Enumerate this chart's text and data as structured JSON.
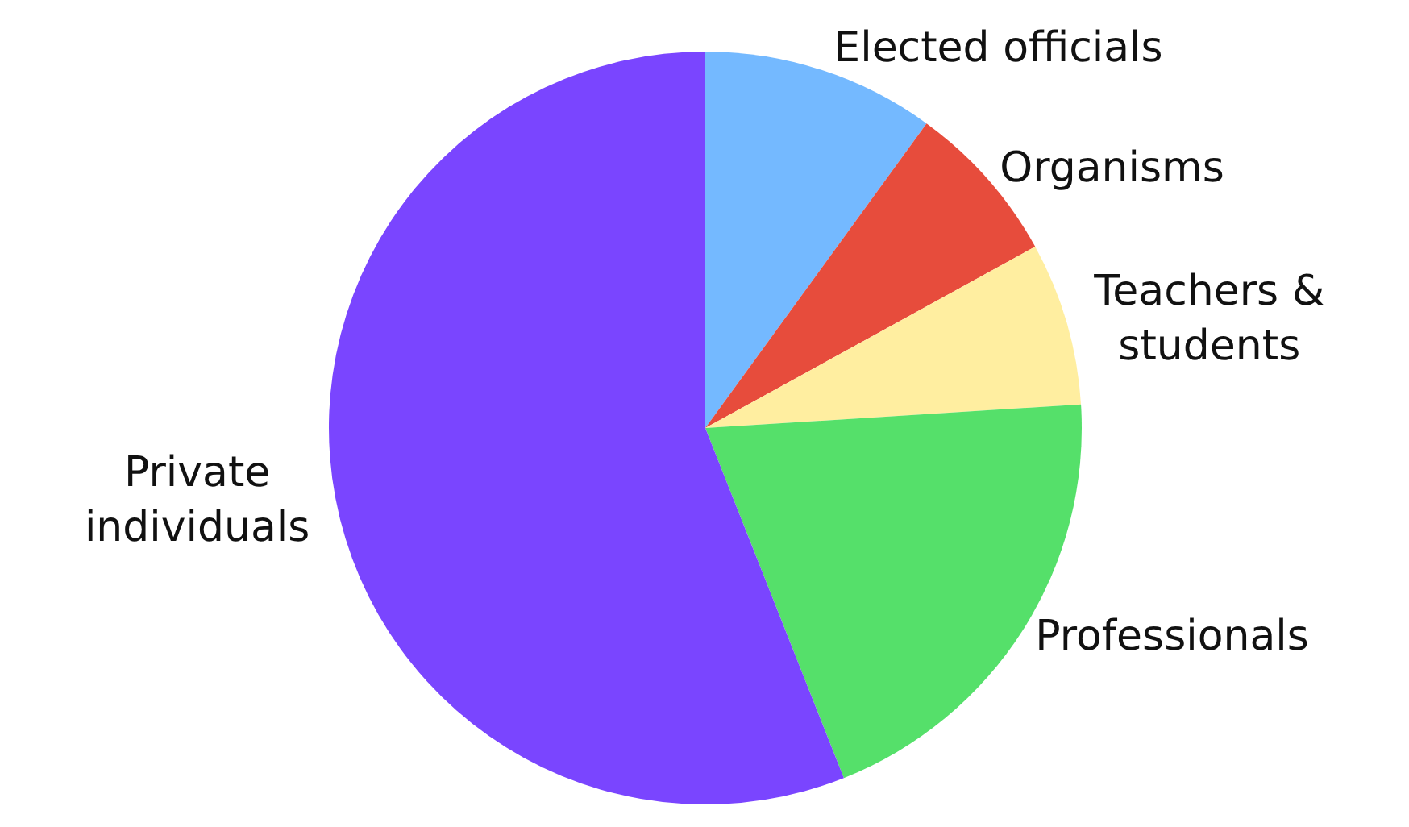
{
  "chart_data": {
    "type": "pie",
    "categories": [
      "Elected officials",
      "Organisms",
      "Teachers &\nstudents",
      "Professionals",
      "Private\nindividuals"
    ],
    "values": [
      10,
      7,
      7,
      20,
      56
    ],
    "colors": [
      "#74b9ff",
      "#e74c3c",
      "#ffeea0",
      "#55e06a",
      "#7a45ff"
    ],
    "legend": false
  }
}
